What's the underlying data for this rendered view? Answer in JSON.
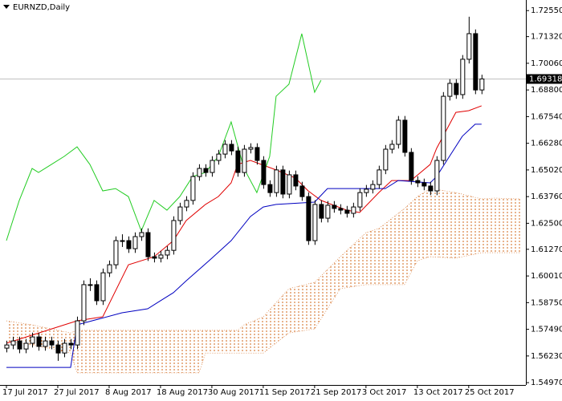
{
  "chart_data": {
    "type": "candlestick",
    "title": "EURNZD,Daily",
    "ylim": [
      1.5486,
      1.7305
    ],
    "xlim": [
      -1,
      80.9
    ],
    "yticks": [
      {
        "value": 1.7255,
        "label": "1.72550"
      },
      {
        "value": 1.7132,
        "label": "1.71320"
      },
      {
        "value": 1.7006,
        "label": "1.70060"
      },
      {
        "value": 1.688,
        "label": "1.68800"
      },
      {
        "value": 1.6754,
        "label": "1.67540"
      },
      {
        "value": 1.6628,
        "label": "1.66280"
      },
      {
        "value": 1.6502,
        "label": "1.65020"
      },
      {
        "value": 1.6376,
        "label": "1.63760"
      },
      {
        "value": 1.625,
        "label": "1.62500"
      },
      {
        "value": 1.6127,
        "label": "1.61270"
      },
      {
        "value": 1.6001,
        "label": "1.60010"
      },
      {
        "value": 1.5875,
        "label": "1.58750"
      },
      {
        "value": 1.5749,
        "label": "1.57490"
      },
      {
        "value": 1.5623,
        "label": "1.56230"
      },
      {
        "value": 1.5497,
        "label": "1.54970"
      }
    ],
    "xticks": [
      {
        "value": 0,
        "label": "17 Jul 2017"
      },
      {
        "value": 8,
        "label": "27 Jul 2017"
      },
      {
        "value": 16,
        "label": "8 Aug 2017"
      },
      {
        "value": 24,
        "label": "18 Aug 2017"
      },
      {
        "value": 32,
        "label": "30 Aug 2017"
      },
      {
        "value": 40,
        "label": "11 Sep 2017"
      },
      {
        "value": 48,
        "label": "21 Sep 2017"
      },
      {
        "value": 56,
        "label": "3 Oct 2017"
      },
      {
        "value": 64,
        "label": "13 Oct 2017"
      },
      {
        "value": 72,
        "label": "25 Oct 2017"
      }
    ],
    "current_price": {
      "value": 1.69318,
      "label": "1.69318"
    },
    "open": [
      1.566,
      1.5675,
      1.5694,
      1.5656,
      1.5683,
      1.5713,
      1.5668,
      1.5694,
      1.5675,
      1.5637,
      1.5683,
      1.5675,
      1.5789,
      1.596,
      1.596,
      1.5884,
      1.6016,
      1.6054,
      1.6168,
      1.6168,
      1.613,
      1.6187,
      1.6206,
      1.6092,
      1.6085,
      1.61,
      1.6122,
      1.6263,
      1.6327,
      1.6358,
      1.6471,
      1.6509,
      1.649,
      1.6547,
      1.6577,
      1.6623,
      1.6592,
      1.649,
      1.66,
      1.6608,
      1.6547,
      1.6433,
      1.6395,
      1.6502,
      1.6388,
      1.6479,
      1.6426,
      1.6376,
      1.6168,
      1.6339,
      1.6274,
      1.6335,
      1.632,
      1.6312,
      1.6297,
      1.6327,
      1.6395,
      1.6411,
      1.6433,
      1.6502,
      1.66,
      1.6623,
      1.6737,
      1.6585,
      1.6452,
      1.6441,
      1.6426,
      1.6403,
      1.6547,
      1.685,
      1.6911,
      1.6858,
      1.7025,
      1.7146,
      1.688
    ],
    "high": [
      1.5695,
      1.5714,
      1.5714,
      1.5703,
      1.5733,
      1.5733,
      1.5714,
      1.5714,
      1.5695,
      1.5703,
      1.5703,
      1.5809,
      1.598,
      1.599,
      1.598,
      1.6036,
      1.6074,
      1.6188,
      1.6198,
      1.6188,
      1.6207,
      1.6226,
      1.6226,
      1.6112,
      1.612,
      1.6142,
      1.6283,
      1.6347,
      1.6378,
      1.6491,
      1.6529,
      1.6529,
      1.6567,
      1.6597,
      1.6643,
      1.6643,
      1.6612,
      1.662,
      1.6628,
      1.6628,
      1.6567,
      1.6453,
      1.6522,
      1.6522,
      1.6499,
      1.6499,
      1.6446,
      1.6396,
      1.6359,
      1.6359,
      1.6355,
      1.6355,
      1.634,
      1.6332,
      1.6347,
      1.6415,
      1.6431,
      1.6453,
      1.6522,
      1.662,
      1.6643,
      1.6757,
      1.6757,
      1.6605,
      1.6472,
      1.6461,
      1.6446,
      1.6567,
      1.687,
      1.6931,
      1.6931,
      1.7045,
      1.7226,
      1.7166,
      1.6952
    ],
    "low": [
      1.564,
      1.5655,
      1.5636,
      1.5636,
      1.5663,
      1.5648,
      1.5648,
      1.5655,
      1.56,
      1.5617,
      1.5655,
      1.5655,
      1.5769,
      1.593,
      1.5864,
      1.5864,
      1.5996,
      1.6034,
      1.6138,
      1.611,
      1.611,
      1.6167,
      1.6072,
      1.6065,
      1.6065,
      1.608,
      1.6102,
      1.6243,
      1.6307,
      1.6338,
      1.6451,
      1.647,
      1.647,
      1.6527,
      1.6557,
      1.6572,
      1.647,
      1.647,
      1.658,
      1.6527,
      1.6413,
      1.6375,
      1.6375,
      1.6368,
      1.6368,
      1.6406,
      1.6356,
      1.6148,
      1.6148,
      1.6254,
      1.6254,
      1.63,
      1.6292,
      1.6277,
      1.6277,
      1.6307,
      1.6375,
      1.6391,
      1.6413,
      1.6482,
      1.658,
      1.6603,
      1.6565,
      1.6432,
      1.6421,
      1.6406,
      1.6383,
      1.6383,
      1.6527,
      1.683,
      1.6838,
      1.6838,
      1.7005,
      1.686,
      1.686
    ],
    "close": [
      1.5675,
      1.5694,
      1.5656,
      1.5683,
      1.5713,
      1.5668,
      1.5694,
      1.5675,
      1.5637,
      1.5683,
      1.5675,
      1.5789,
      1.596,
      1.596,
      1.5884,
      1.6016,
      1.6054,
      1.6168,
      1.6168,
      1.613,
      1.6187,
      1.6206,
      1.6092,
      1.6085,
      1.61,
      1.6122,
      1.6263,
      1.6327,
      1.6358,
      1.6471,
      1.6509,
      1.649,
      1.6547,
      1.6577,
      1.6623,
      1.6592,
      1.649,
      1.66,
      1.6608,
      1.6547,
      1.6433,
      1.6395,
      1.6502,
      1.6388,
      1.6479,
      1.6426,
      1.6376,
      1.6168,
      1.6339,
      1.6274,
      1.6335,
      1.632,
      1.6312,
      1.6297,
      1.6327,
      1.6395,
      1.6411,
      1.6433,
      1.6502,
      1.66,
      1.6623,
      1.6737,
      1.6585,
      1.6452,
      1.6441,
      1.6426,
      1.6403,
      1.6547,
      1.685,
      1.6911,
      1.6858,
      1.7025,
      1.7146,
      1.688,
      1.6932
    ],
    "cloud": {
      "color": "#d2691e",
      "x": [
        0,
        4,
        10,
        11,
        30,
        31,
        36,
        37,
        40,
        44,
        48,
        52,
        56,
        58,
        62,
        64,
        66,
        70,
        74,
        76,
        80
      ],
      "span_a": [
        1.5789,
        1.577,
        1.5732,
        1.5744,
        1.5744,
        1.5744,
        1.5744,
        1.577,
        1.5808,
        1.5941,
        1.5971,
        1.6092,
        1.6206,
        1.6225,
        1.632,
        1.6376,
        1.6414,
        1.6395,
        1.6365,
        1.6369,
        1.6365
      ],
      "span_b": [
        1.5694,
        1.5675,
        1.5637,
        1.5543,
        1.5543,
        1.5637,
        1.5637,
        1.5637,
        1.5637,
        1.5732,
        1.5751,
        1.5941,
        1.596,
        1.596,
        1.596,
        1.6073,
        1.6092,
        1.6085,
        1.6111,
        1.6111,
        1.6111
      ]
    },
    "lines": [
      {
        "color": "#e00000",
        "x": [
          0,
          11,
          15,
          19,
          23,
          26,
          28,
          31,
          33,
          35,
          36,
          38,
          42,
          45,
          47,
          49,
          53,
          55,
          58,
          60,
          63,
          66,
          67,
          70,
          72,
          74
        ],
        "values": [
          1.5683,
          1.5789,
          1.5808,
          1.6054,
          1.6092,
          1.6168,
          1.6263,
          1.6339,
          1.6376,
          1.6441,
          1.6528,
          1.6547,
          1.6502,
          1.6464,
          1.6403,
          1.6358,
          1.6312,
          1.6301,
          1.6395,
          1.6452,
          1.6452,
          1.6528,
          1.6604,
          1.6774,
          1.6782,
          1.6805
        ]
      },
      {
        "color": "#0000c0",
        "x": [
          0,
          10,
          11,
          18,
          22,
          24,
          26,
          28,
          32,
          35,
          38,
          40,
          42,
          48,
          50,
          59,
          61,
          66,
          67,
          69,
          71,
          73,
          74
        ],
        "values": [
          1.5569,
          1.5569,
          1.577,
          1.5827,
          1.5846,
          1.5884,
          1.5922,
          1.5978,
          1.6085,
          1.6168,
          1.6282,
          1.6327,
          1.6339,
          1.635,
          1.6414,
          1.6414,
          1.6452,
          1.6441,
          1.6471,
          1.6566,
          1.6661,
          1.6718,
          1.6718
        ]
      },
      {
        "color": "#22cc22",
        "x": [
          0,
          2,
          4,
          5,
          7,
          9,
          11,
          13,
          15,
          17,
          19,
          21,
          23,
          25,
          27,
          29,
          31,
          33,
          35,
          37,
          39,
          41,
          42,
          44,
          46,
          48,
          49
        ],
        "values": [
          1.6168,
          1.6358,
          1.6509,
          1.649,
          1.6528,
          1.6566,
          1.6611,
          1.6528,
          1.6403,
          1.6414,
          1.6376,
          1.6214,
          1.6358,
          1.6312,
          1.6376,
          1.6471,
          1.649,
          1.6566,
          1.6729,
          1.6509,
          1.6395,
          1.6566,
          1.685,
          1.6907,
          1.7146,
          1.6869,
          1.6926
        ]
      }
    ]
  }
}
